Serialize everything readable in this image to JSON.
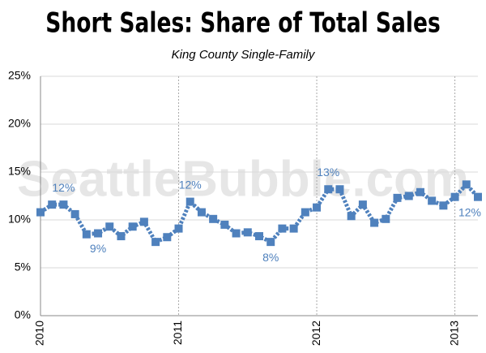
{
  "chart_data": {
    "type": "line",
    "title": "Short Sales: Share of Total Sales",
    "subtitle": "King County Single-Family",
    "watermark": "SeattleBubble.com",
    "categories": [
      "2010",
      null,
      null,
      null,
      null,
      null,
      null,
      null,
      null,
      null,
      null,
      null,
      "2011",
      null,
      null,
      null,
      null,
      null,
      null,
      null,
      null,
      null,
      null,
      null,
      "2012",
      null,
      null,
      null,
      null,
      null,
      null,
      null,
      null,
      null,
      null,
      null,
      "2013",
      null,
      null
    ],
    "series": [
      {
        "name": "Short Sales",
        "color": "#4f81bd",
        "values": [
          10.8,
          11.6,
          11.6,
          10.6,
          8.5,
          8.6,
          9.3,
          8.3,
          9.3,
          9.8,
          7.7,
          8.2,
          9.1,
          11.9,
          10.8,
          10.1,
          9.5,
          8.6,
          8.7,
          8.3,
          7.7,
          9.1,
          9.1,
          10.8,
          11.3,
          13.2,
          13.2,
          10.4,
          11.6,
          9.7,
          10.1,
          12.3,
          12.5,
          12.9,
          12.0,
          11.5,
          12.4,
          13.7,
          12.4
        ],
        "value_labels": [
          null,
          null,
          "12%",
          null,
          null,
          "9%",
          null,
          null,
          null,
          null,
          null,
          null,
          null,
          "12%",
          null,
          null,
          null,
          null,
          null,
          null,
          "8%",
          null,
          null,
          null,
          null,
          "13%",
          null,
          null,
          null,
          null,
          null,
          null,
          null,
          null,
          null,
          null,
          null,
          null,
          "12%"
        ]
      }
    ],
    "ylim": [
      0,
      25
    ],
    "yticks": [
      {
        "value": 0,
        "label": "0%"
      },
      {
        "value": 5,
        "label": "5%"
      },
      {
        "value": 10,
        "label": "10%"
      },
      {
        "value": 15,
        "label": "15%"
      },
      {
        "value": 20,
        "label": "20%"
      },
      {
        "value": 25,
        "label": "25%"
      }
    ],
    "grid": true
  }
}
